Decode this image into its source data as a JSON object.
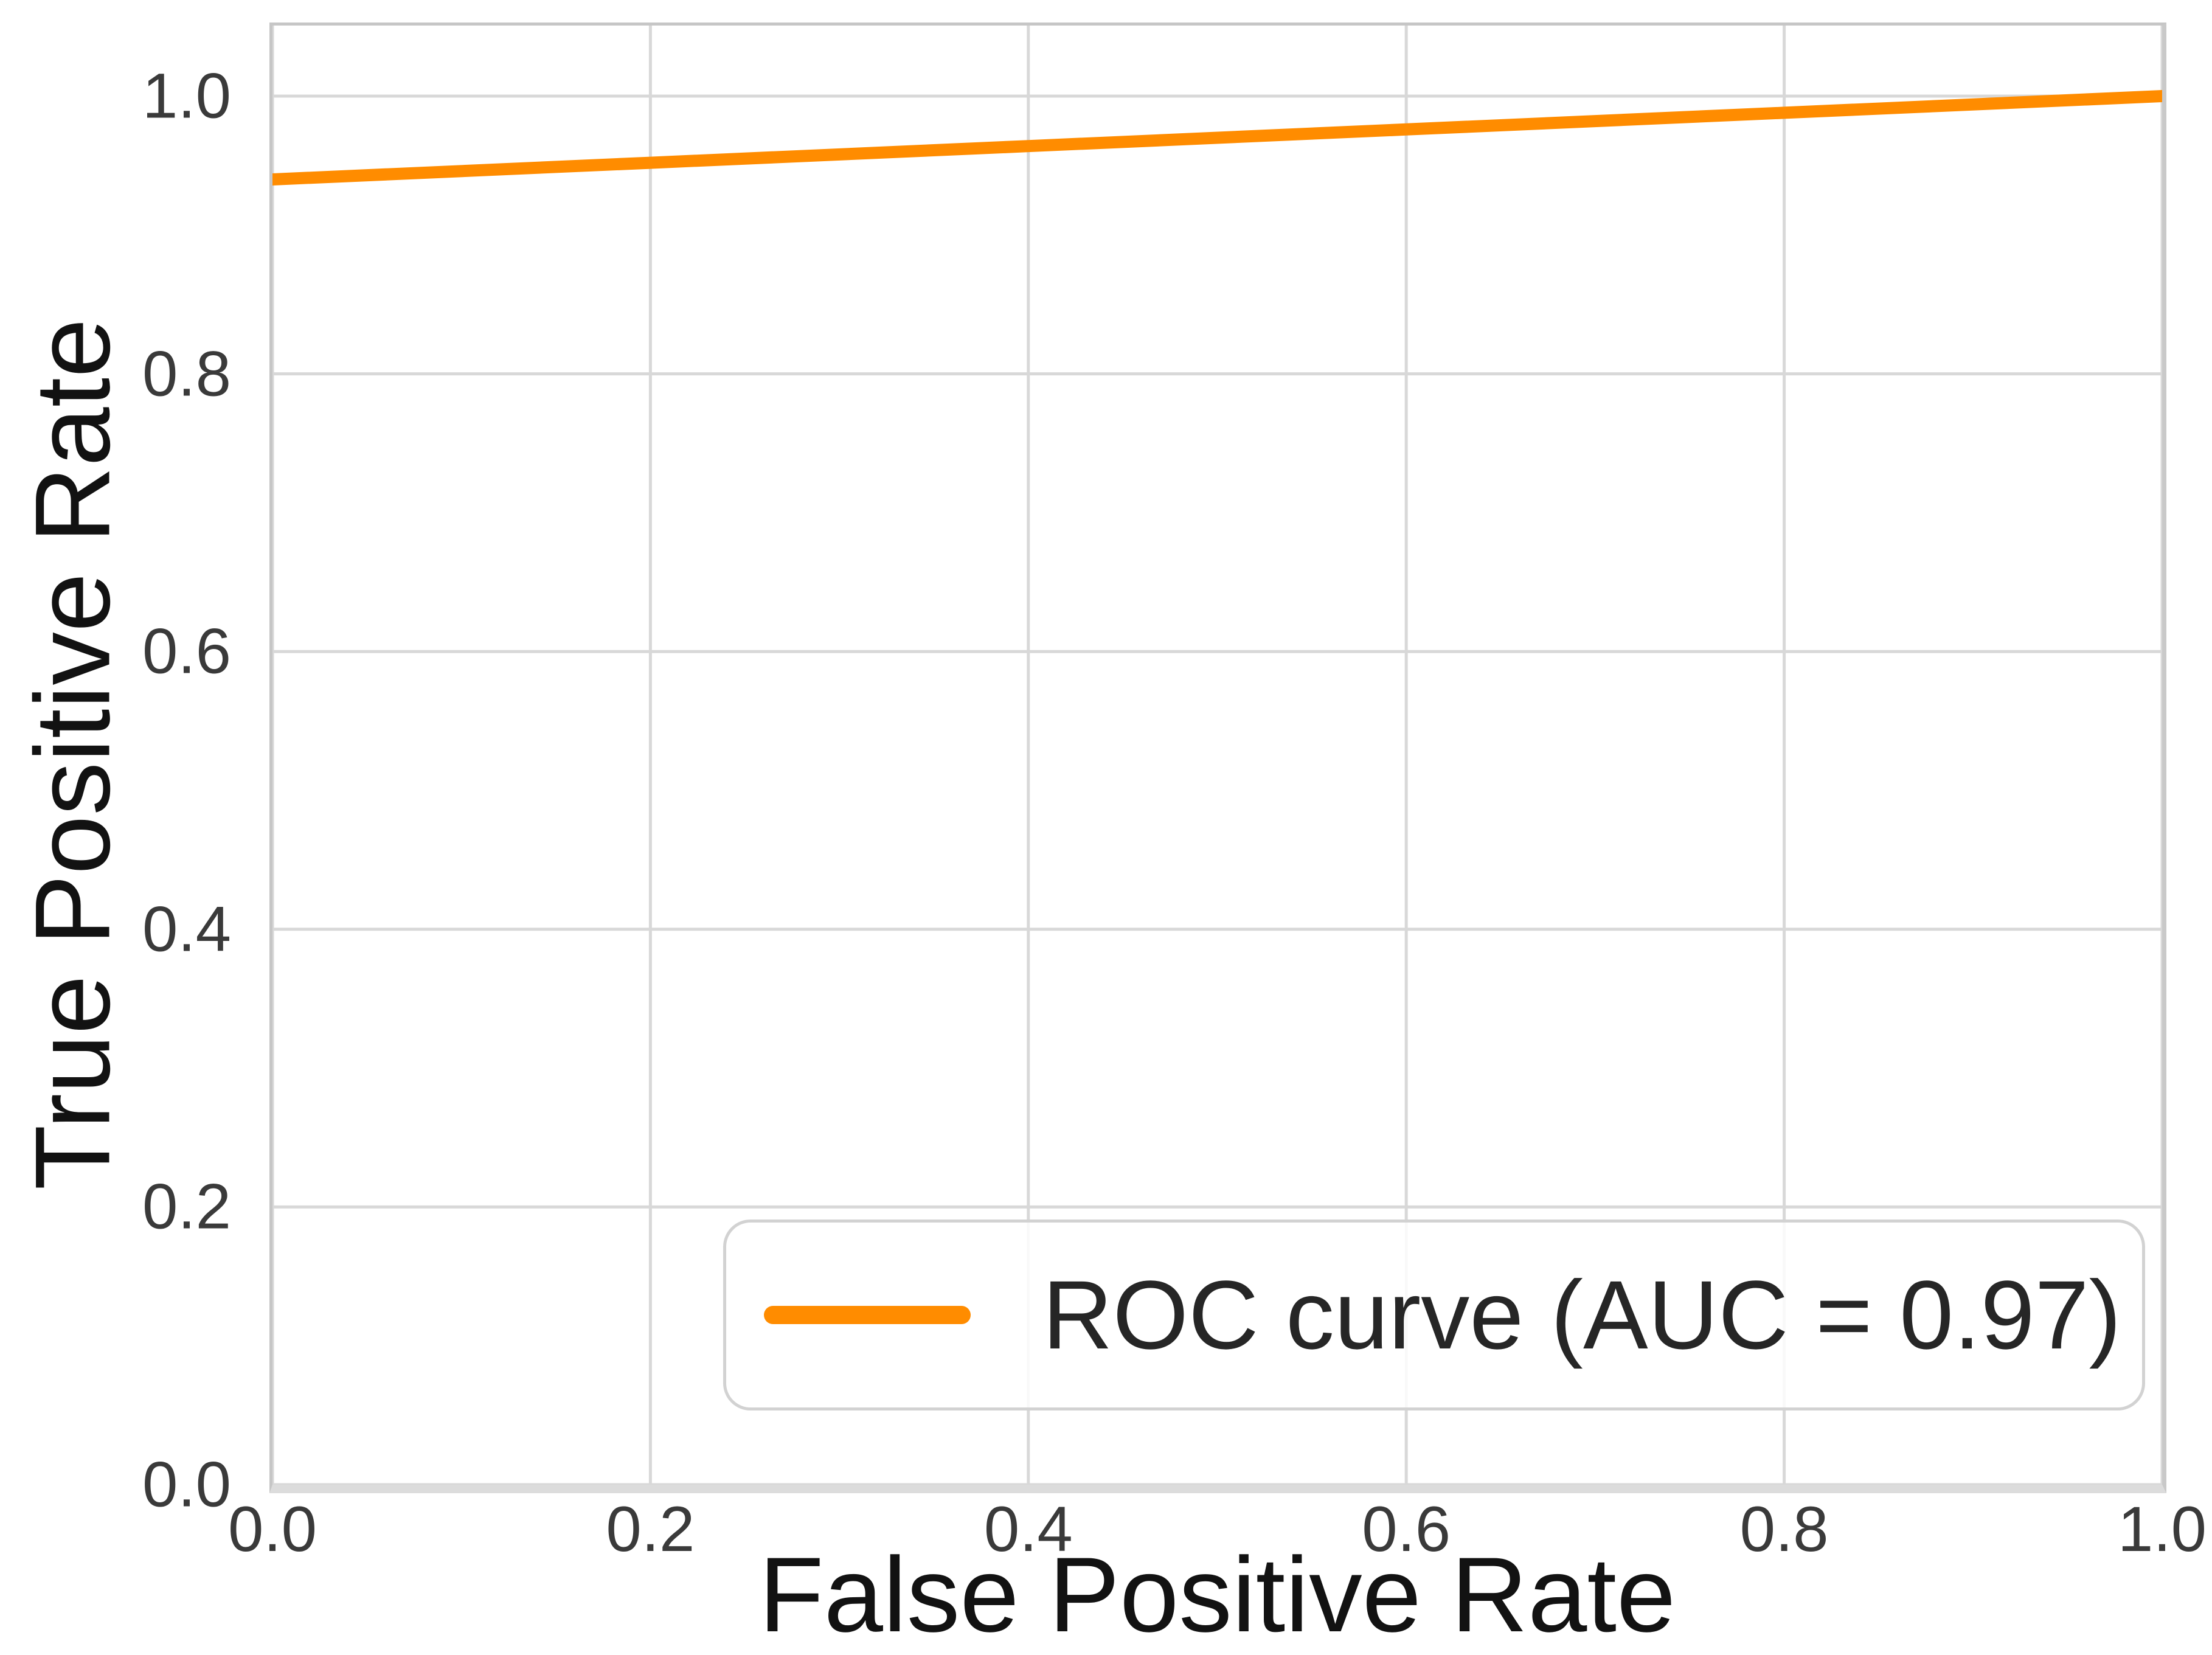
{
  "figure": {
    "xlabel": "False Positive Rate",
    "ylabel": "True Positive Rate"
  },
  "chart_data": {
    "type": "line",
    "title": "",
    "xlabel": "False Positive Rate",
    "ylabel": "True Positive Rate",
    "xlim": [
      0.0,
      1.0
    ],
    "ylim": [
      0.0,
      1.05
    ],
    "x_ticks": [
      0.0,
      0.2,
      0.4,
      0.6,
      0.8,
      1.0
    ],
    "y_ticks": [
      0.0,
      0.2,
      0.4,
      0.6,
      0.8,
      1.0
    ],
    "grid": true,
    "legend_position": "lower right",
    "series": [
      {
        "name": "ROC curve (AUC = 0.97)",
        "color": "#ff8c00",
        "auc": 0.97,
        "x": [
          0.0,
          0.2,
          0.4,
          0.6,
          0.8,
          1.0
        ],
        "y": [
          0.94,
          0.952,
          0.964,
          0.976,
          0.988,
          1.0
        ]
      }
    ]
  },
  "legend": {
    "label": "ROC curve (AUC = 0.97)"
  },
  "colors": {
    "accent": "#ff8c00",
    "grid": "#d8d8d8",
    "spine": "#c6c6c6",
    "tick_text": "#3a3a3a",
    "label_text": "#121212"
  }
}
